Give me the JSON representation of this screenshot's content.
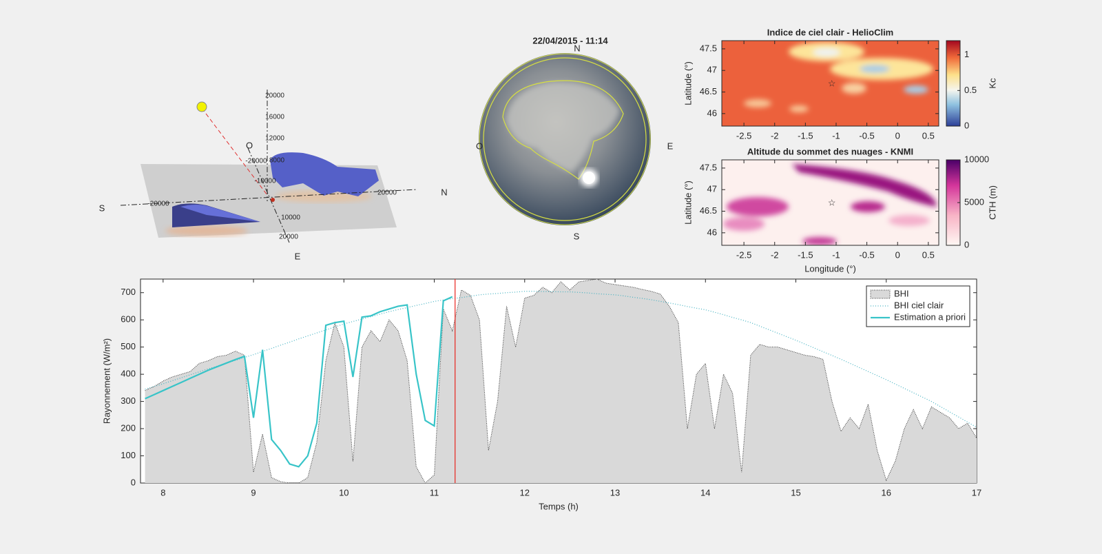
{
  "chart_data": [
    {
      "type": "line",
      "xlabel": "Temps (h)",
      "ylabel": "Rayonnement (W/m²)",
      "xlim": [
        7.75,
        17
      ],
      "xticks": [
        8,
        9,
        10,
        11,
        12,
        13,
        14,
        15,
        16,
        17
      ],
      "ylim": [
        0,
        750
      ],
      "yticks": [
        0,
        100,
        200,
        300,
        400,
        500,
        600,
        700
      ],
      "legend": "upper right",
      "marker_x": 11.23,
      "marker_color": "#e8231c",
      "x": [
        7.8,
        7.9,
        8.0,
        8.1,
        8.2,
        8.3,
        8.4,
        8.5,
        8.6,
        8.7,
        8.8,
        8.9,
        9.0,
        9.1,
        9.2,
        9.3,
        9.4,
        9.5,
        9.6,
        9.7,
        9.8,
        9.9,
        10.0,
        10.1,
        10.2,
        10.3,
        10.4,
        10.5,
        10.6,
        10.7,
        10.8,
        10.9,
        11.0,
        11.1,
        11.2,
        11.3,
        11.4,
        11.5,
        11.6,
        11.7,
        11.8,
        11.9,
        12.0,
        12.1,
        12.2,
        12.3,
        12.4,
        12.5,
        12.6,
        12.7,
        12.8,
        12.9,
        13.0,
        13.1,
        13.2,
        13.3,
        13.4,
        13.5,
        13.6,
        13.7,
        13.8,
        13.9,
        14.0,
        14.1,
        14.2,
        14.3,
        14.4,
        14.5,
        14.6,
        14.7,
        14.8,
        14.9,
        15.0,
        15.1,
        15.2,
        15.3,
        15.4,
        15.5,
        15.6,
        15.7,
        15.8,
        15.9,
        16.0,
        16.1,
        16.2,
        16.3,
        16.4,
        16.5,
        16.6,
        16.7,
        16.8,
        16.9,
        17.0
      ],
      "series": [
        {
          "name": "BHI",
          "style": "area",
          "color": "#d9d9d9",
          "edge_color": "#333333",
          "values": [
            340,
            355,
            375,
            390,
            400,
            410,
            440,
            450,
            465,
            470,
            485,
            470,
            40,
            180,
            20,
            5,
            0,
            0,
            20,
            150,
            450,
            590,
            500,
            80,
            500,
            560,
            520,
            600,
            560,
            450,
            60,
            0,
            30,
            640,
            560,
            710,
            690,
            600,
            120,
            300,
            650,
            500,
            680,
            690,
            720,
            700,
            740,
            710,
            740,
            745,
            750,
            735,
            730,
            725,
            720,
            712,
            705,
            695,
            650,
            590,
            200,
            400,
            440,
            200,
            400,
            330,
            40,
            470,
            510,
            500,
            500,
            490,
            480,
            470,
            465,
            455,
            300,
            190,
            240,
            200,
            290,
            120,
            10,
            80,
            200,
            270,
            200,
            280,
            260,
            240,
            200,
            220,
            165
          ]
        },
        {
          "name": "BHI ciel clair",
          "style": "dotted",
          "color": "#3fb0c0",
          "values": [
            345,
            355,
            365,
            376,
            387,
            398,
            409,
            420,
            430,
            441,
            451,
            462,
            472,
            484,
            495,
            507,
            518,
            530,
            541,
            552,
            563,
            574,
            585,
            594,
            603,
            612,
            621,
            630,
            638,
            645,
            653,
            660,
            668,
            673,
            678,
            682,
            687,
            692,
            695,
            697,
            700,
            702,
            705,
            705,
            704,
            704,
            703,
            703,
            701,
            699,
            696,
            694,
            692,
            688,
            683,
            679,
            674,
            668,
            662,
            656,
            649,
            643,
            637,
            628,
            619,
            609,
            600,
            590,
            577,
            564,
            551,
            538,
            525,
            511,
            497,
            483,
            469,
            455,
            440,
            425,
            410,
            395,
            380,
            364,
            348,
            332,
            316,
            300,
            281,
            262,
            243,
            224,
            205
          ]
        },
        {
          "name": "Estimation a priori",
          "style": "solid",
          "color": "#38c4c8",
          "values": [
            310,
            325,
            340,
            355,
            370,
            385,
            400,
            415,
            428,
            441,
            454,
            466,
            240,
            490,
            160,
            120,
            70,
            60,
            100,
            220,
            580,
            590,
            595,
            390,
            610,
            615,
            630,
            640,
            650,
            655,
            400,
            230,
            210,
            670,
            685,
            null,
            null,
            null,
            null,
            null,
            null,
            null,
            null,
            null,
            null,
            null,
            null,
            null,
            null,
            null,
            null,
            null,
            null,
            null,
            null,
            null,
            null,
            null,
            null,
            null,
            null,
            null,
            null,
            null,
            null,
            null,
            null,
            null,
            null,
            null,
            null,
            null,
            null,
            null,
            null,
            null,
            null,
            null,
            null,
            null,
            null,
            null,
            null,
            null,
            null,
            null,
            null,
            null,
            null,
            null,
            null,
            null,
            null
          ]
        }
      ]
    },
    {
      "type": "heatmap",
      "title": "Indice de ciel clair - HelioClim",
      "ylabel": "Latitude (°)",
      "xlim": [
        -2.86,
        0.67
      ],
      "xticks": [
        -2.5,
        -2,
        -1.5,
        -1,
        -0.5,
        0,
        0.5
      ],
      "ylim": [
        45.71,
        47.69
      ],
      "yticks": [
        46,
        46.5,
        47,
        47.5
      ],
      "colorbar": {
        "label": "Kc",
        "lim": [
          0,
          1.2
        ],
        "ticks": [
          0,
          0.5,
          1
        ]
      },
      "site": {
        "x": -1.07,
        "y": 46.68,
        "color": "#000000"
      }
    },
    {
      "type": "heatmap",
      "title": "Altitude du sommet des nuages - KNMI",
      "xlabel": "Longitude (°)",
      "ylabel": "Latitude (°)",
      "xlim": [
        -2.86,
        0.67
      ],
      "xticks": [
        -2.5,
        -2,
        -1.5,
        -1,
        -0.5,
        0,
        0.5
      ],
      "ylim": [
        45.71,
        47.69
      ],
      "yticks": [
        46,
        46.5,
        47,
        47.5
      ],
      "colorbar": {
        "label": "CTH (m)",
        "lim": [
          0,
          10000
        ],
        "ticks": [
          0,
          5000,
          10000
        ]
      },
      "site": {
        "x": -1.07,
        "y": 46.68,
        "color": "#1f3fd0"
      }
    }
  ],
  "sky": {
    "datetime": "22/04/2015  -  11:14",
    "north": "N",
    "south": "S",
    "east": "E",
    "west": "O"
  },
  "view3d": {
    "south": "S",
    "north": "N",
    "west": "O",
    "east": "E",
    "z_labels": [
      "20000",
      "16000",
      "12000",
      "8000"
    ],
    "ns_labels": [
      "-20000",
      "-10000",
      "20000"
    ],
    "oe_labels": [
      "-20000",
      "10000",
      "20000"
    ]
  }
}
